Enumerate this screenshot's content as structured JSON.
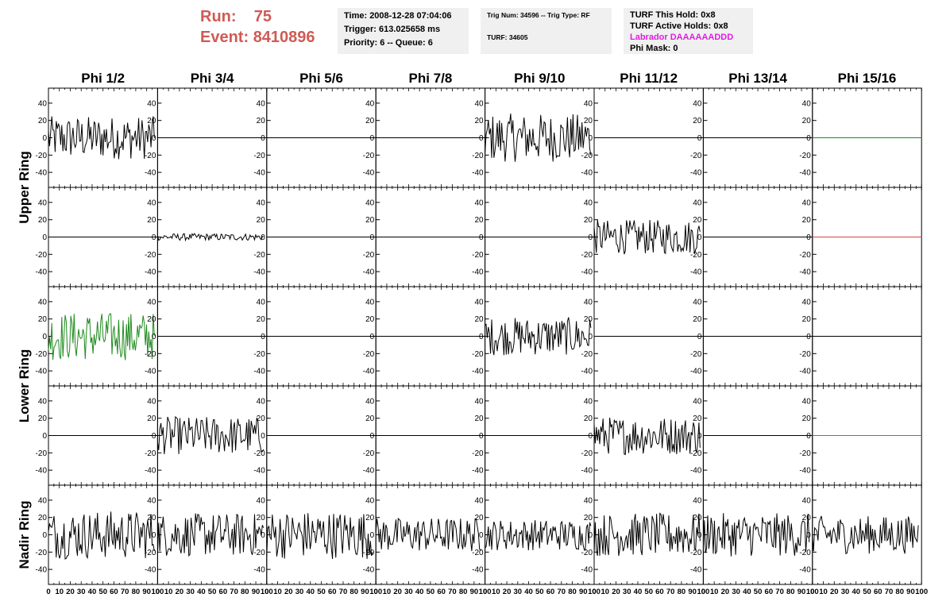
{
  "header": {
    "run_label": "Run:",
    "run_value": "75",
    "event_label": "Event:",
    "event_value": "8410896"
  },
  "info_time": {
    "time": "Time: 2008-12-28 07:04:06",
    "trigger": "Trigger: 613.025658 ms",
    "priority": "Priority: 6 -- Queue: 6"
  },
  "info_trig": {
    "trig": "Trig Num: 34596 -- Trig Type: RF",
    "turf": "TURF: 34605"
  },
  "info_turf": {
    "this_hold": "TURF This Hold: 0x8",
    "active_holds": "TURF Active Holds: 0x8",
    "labrador": "Labrador DAAAAAADDD",
    "phi_mask": "Phi Mask: 0"
  },
  "chart_data": {
    "type": "line",
    "columns": [
      "Phi 1/2",
      "Phi 3/4",
      "Phi 5/6",
      "Phi 7/8",
      "Phi 9/10",
      "Phi 11/12",
      "Phi 13/14",
      "Phi 15/16"
    ],
    "rows": [
      "Upper Ring",
      "Upper Ring",
      "Lower Ring",
      "Lower Ring",
      "Nadir Ring"
    ],
    "row_labels": [
      "Upper Ring",
      "Lower Ring",
      "Nadir Ring"
    ],
    "xlim": [
      0,
      100
    ],
    "x_ticks": [
      "0",
      "10",
      "20",
      "30",
      "40",
      "50",
      "60",
      "70",
      "80",
      "90",
      "100"
    ],
    "ylim": [
      -50,
      50
    ],
    "y_ticks": [
      "40",
      "20",
      "0",
      "-20",
      "-40"
    ],
    "samples": 96,
    "colors": {
      "default": "#000000",
      "green": "#1f8a1f",
      "red": "#d94444"
    },
    "panels": [
      [
        {
          "amp": 25,
          "color": "default"
        },
        {
          "amp": 0,
          "color": "default"
        },
        {
          "amp": 0,
          "color": "default"
        },
        {
          "amp": 0,
          "color": "default"
        },
        {
          "amp": 28,
          "color": "default"
        },
        {
          "amp": 0,
          "color": "default"
        },
        {
          "amp": 0,
          "color": "default"
        },
        {
          "amp": 0,
          "color": "green"
        }
      ],
      [
        {
          "amp": 0,
          "color": "default"
        },
        {
          "amp": 4,
          "color": "default"
        },
        {
          "amp": 0,
          "color": "default"
        },
        {
          "amp": 0,
          "color": "default"
        },
        {
          "amp": 0,
          "color": "default"
        },
        {
          "amp": 20,
          "color": "default"
        },
        {
          "amp": 0,
          "color": "default"
        },
        {
          "amp": 0,
          "color": "red"
        }
      ],
      [
        {
          "amp": 28,
          "color": "green"
        },
        {
          "amp": 0,
          "color": "default"
        },
        {
          "amp": 0,
          "color": "default"
        },
        {
          "amp": 0,
          "color": "default"
        },
        {
          "amp": 22,
          "color": "default"
        },
        {
          "amp": 0,
          "color": "default"
        },
        {
          "amp": 0,
          "color": "default"
        },
        {
          "amp": 0,
          "color": "default"
        }
      ],
      [
        {
          "amp": 0,
          "color": "default"
        },
        {
          "amp": 22,
          "color": "default"
        },
        {
          "amp": 0,
          "color": "default"
        },
        {
          "amp": 0,
          "color": "default"
        },
        {
          "amp": 0,
          "color": "default"
        },
        {
          "amp": 22,
          "color": "default"
        },
        {
          "amp": 0,
          "color": "default"
        },
        {
          "amp": 0,
          "color": "red"
        }
      ],
      [
        {
          "amp": 28,
          "color": "default"
        },
        {
          "amp": 25,
          "color": "default"
        },
        {
          "amp": 28,
          "color": "default"
        },
        {
          "amp": 20,
          "color": "default"
        },
        {
          "amp": 18,
          "color": "default"
        },
        {
          "amp": 25,
          "color": "default"
        },
        {
          "amp": 25,
          "color": "default"
        },
        {
          "amp": 22,
          "color": "default"
        }
      ]
    ]
  }
}
